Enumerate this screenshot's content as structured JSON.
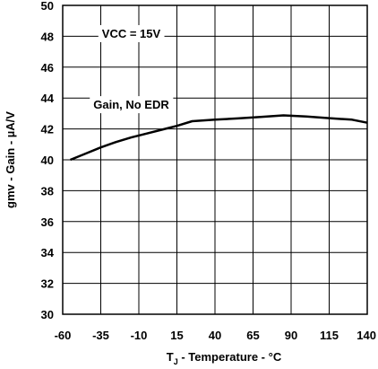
{
  "chart_data": {
    "type": "line",
    "xlabel_sub": "J",
    "xlabel_prefix": "T",
    "xlabel_suffix": " - Temperature - °C",
    "ylabel": "gmv - Gain - µA/V",
    "xlim": [
      -60,
      140
    ],
    "ylim": [
      30,
      50
    ],
    "x_ticks": [
      -60,
      -35,
      -10,
      15,
      40,
      65,
      90,
      115,
      140
    ],
    "y_ticks": [
      30,
      32,
      34,
      36,
      38,
      40,
      42,
      44,
      46,
      48,
      50
    ],
    "grid": true,
    "annotations": [
      {
        "text": "VCC = 15V",
        "x": -15,
        "y": 48.2
      },
      {
        "text": "Gain, No EDR",
        "x": -15,
        "y": 43.6
      }
    ],
    "series": [
      {
        "x": [
          -55,
          -45,
          -35,
          -25,
          -15,
          -5,
          5,
          15,
          25,
          40,
          55,
          70,
          85,
          100,
          115,
          130,
          140
        ],
        "y": [
          40.0,
          40.4,
          40.8,
          41.15,
          41.45,
          41.7,
          41.95,
          42.2,
          42.5,
          42.6,
          42.68,
          42.78,
          42.88,
          42.8,
          42.7,
          42.6,
          42.4
        ]
      }
    ]
  }
}
